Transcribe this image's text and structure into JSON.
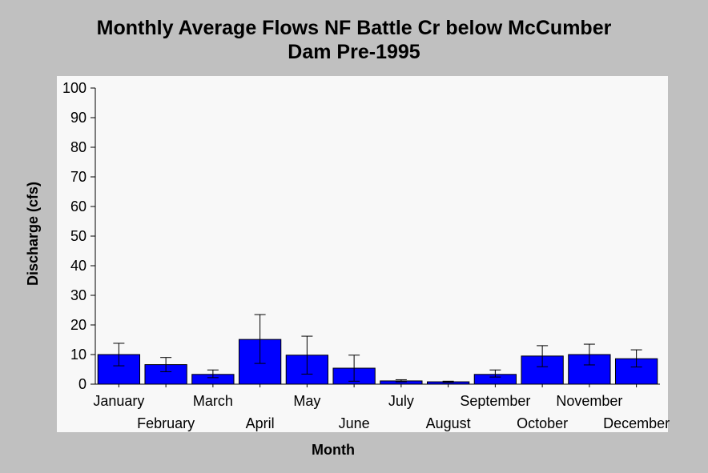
{
  "chart_data": {
    "type": "bar",
    "title_line1": "Monthly Average Flows NF Battle Cr below McCumber",
    "title_line2": "Dam Pre-1995",
    "xlabel": "Month",
    "ylabel": "Discharge (cfs)",
    "ylim": [
      0,
      100
    ],
    "yticks": [
      0,
      10,
      20,
      30,
      40,
      50,
      60,
      70,
      80,
      90,
      100
    ],
    "categories": [
      "January",
      "February",
      "March",
      "April",
      "May",
      "June",
      "July",
      "August",
      "September",
      "October",
      "November",
      "December"
    ],
    "values": [
      10.0,
      6.6,
      3.3,
      15.1,
      9.8,
      5.4,
      1.1,
      0.8,
      3.3,
      9.5,
      10.0,
      8.6
    ],
    "error_low": [
      6.2,
      4.2,
      2.2,
      7.0,
      3.4,
      1.0,
      0.8,
      0.6,
      2.4,
      5.9,
      6.5,
      5.8
    ],
    "error_high": [
      13.8,
      9.0,
      4.8,
      23.5,
      16.2,
      9.8,
      1.5,
      1.0,
      4.8,
      13.0,
      13.5,
      11.6
    ],
    "bar_color": "#0000ff",
    "plot_background": "#f8f8f8",
    "page_background": "#c0c0c0",
    "grid": false,
    "legend": "none"
  }
}
